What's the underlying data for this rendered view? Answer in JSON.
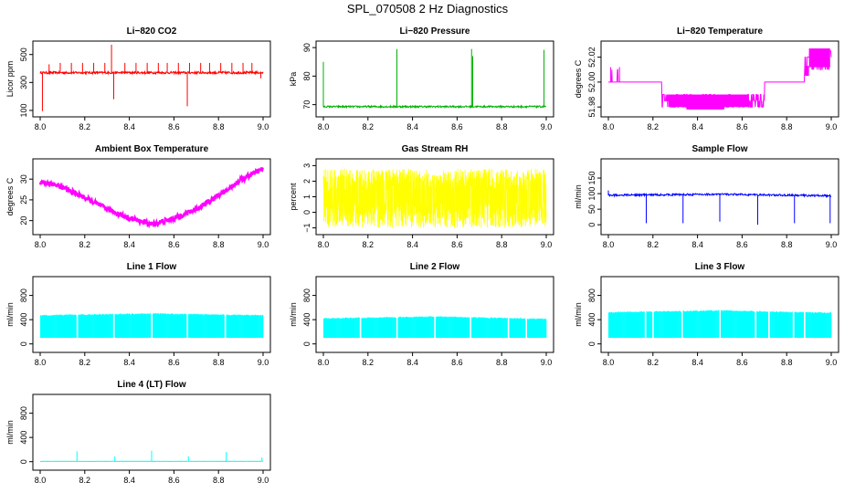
{
  "figure_title": "SPL_070508  2 Hz Diagnostics",
  "colors": {
    "red": "#ff0000",
    "green": "#00b000",
    "magenta": "#ff00ff",
    "yellow": "#ffff00",
    "blue": "#0000ff",
    "cyan": "#00ffff"
  },
  "chart_data": [
    {
      "type": "line",
      "title": "Li−820 CO2",
      "ylabel": "Licor ppm",
      "xlim": [
        8.0,
        9.0
      ],
      "ylim": [
        80,
        570
      ],
      "xticks": [
        "8.0",
        "8.2",
        "8.4",
        "8.6",
        "8.8",
        "9.0"
      ],
      "yticks": [
        "100",
        "300",
        "500"
      ],
      "ytick_values": [
        100,
        300,
        500
      ],
      "color": "red",
      "series": [
        {
          "baseline": 370,
          "noise": 8,
          "spikes": [
            {
              "x": 8.01,
              "y": 95
            },
            {
              "x": 8.04,
              "y": 430
            },
            {
              "x": 8.09,
              "y": 440
            },
            {
              "x": 8.14,
              "y": 440
            },
            {
              "x": 8.19,
              "y": 440
            },
            {
              "x": 8.24,
              "y": 440
            },
            {
              "x": 8.29,
              "y": 440
            },
            {
              "x": 8.32,
              "y": 570
            },
            {
              "x": 8.33,
              "y": 180
            },
            {
              "x": 8.38,
              "y": 440
            },
            {
              "x": 8.43,
              "y": 440
            },
            {
              "x": 8.48,
              "y": 440
            },
            {
              "x": 8.53,
              "y": 440
            },
            {
              "x": 8.57,
              "y": 440
            },
            {
              "x": 8.62,
              "y": 440
            },
            {
              "x": 8.66,
              "y": 130
            },
            {
              "x": 8.67,
              "y": 440
            },
            {
              "x": 8.72,
              "y": 440
            },
            {
              "x": 8.76,
              "y": 440
            },
            {
              "x": 8.81,
              "y": 440
            },
            {
              "x": 8.86,
              "y": 440
            },
            {
              "x": 8.91,
              "y": 440
            },
            {
              "x": 8.95,
              "y": 440
            },
            {
              "x": 8.99,
              "y": 330
            }
          ]
        }
      ]
    },
    {
      "type": "line",
      "title": "Li−820 Pressure",
      "ylabel": "kPa",
      "xlim": [
        8.0,
        9.0
      ],
      "ylim": [
        67,
        91
      ],
      "xticks": [
        "8.0",
        "8.2",
        "8.4",
        "8.6",
        "8.8",
        "9.0"
      ],
      "yticks": [
        "70",
        "80",
        "90"
      ],
      "ytick_values": [
        70,
        80,
        90
      ],
      "color": "green",
      "series": [
        {
          "baseline": 69.3,
          "noise": 0.3,
          "spikes": [
            {
              "x": 8.0,
              "y": 85
            },
            {
              "x": 8.33,
              "y": 89.5
            },
            {
              "x": 8.665,
              "y": 89.5
            },
            {
              "x": 8.67,
              "y": 87
            },
            {
              "x": 8.99,
              "y": 89.2
            }
          ]
        }
      ]
    },
    {
      "type": "line",
      "title": "Li−820 Temperature",
      "ylabel": "degrees C",
      "xlim": [
        8.0,
        9.0
      ],
      "ylim": [
        51.975,
        52.03
      ],
      "xticks": [
        "8.0",
        "8.2",
        "8.4",
        "8.6",
        "8.8",
        "9.0"
      ],
      "yticks": [
        "51.98",
        "52.00",
        "52.02"
      ],
      "ytick_values": [
        51.98,
        52.0,
        52.02
      ],
      "color": "magenta",
      "series": [
        {
          "baseline": 52.0,
          "noise": 0,
          "spikes": []
        }
      ]
    },
    {
      "type": "line",
      "title": "Ambient Box Temperature",
      "ylabel": "degrees C",
      "xlim": [
        8.0,
        9.0
      ],
      "ylim": [
        17.5,
        34
      ],
      "xticks": [
        "8.0",
        "8.2",
        "8.4",
        "8.6",
        "8.8",
        "9.0"
      ],
      "yticks": [
        "20",
        "25",
        "30"
      ],
      "ytick_values": [
        20,
        25,
        30
      ],
      "color": "magenta",
      "series": [
        {
          "curve": [
            [
              8.0,
              29.2
            ],
            [
              8.05,
              29.0
            ],
            [
              8.1,
              28.0
            ],
            [
              8.2,
              25.5
            ],
            [
              8.3,
              22.8
            ],
            [
              8.4,
              20.6
            ],
            [
              8.5,
              19.1
            ],
            [
              8.6,
              20.5
            ],
            [
              8.7,
              22.8
            ],
            [
              8.8,
              26.0
            ],
            [
              8.9,
              29.8
            ],
            [
              9.0,
              32.5
            ]
          ],
          "noise": 0.6
        }
      ]
    },
    {
      "type": "line",
      "title": "Gas Stream RH",
      "ylabel": "percent",
      "xlim": [
        8.0,
        9.0
      ],
      "ylim": [
        -1.2,
        3.2
      ],
      "xticks": [
        "8.0",
        "8.2",
        "8.4",
        "8.6",
        "8.8",
        "9.0"
      ],
      "yticks": [
        "−1",
        "0",
        "1",
        "2",
        "3"
      ],
      "ytick_values": [
        -1,
        0,
        1,
        2,
        3
      ],
      "color": "yellow",
      "series": [
        {
          "band": [
            -1.0,
            2.8
          ]
        }
      ]
    },
    {
      "type": "line",
      "title": "Sample Flow",
      "ylabel": "ml/min",
      "xlim": [
        8.0,
        9.0
      ],
      "ylim": [
        -20,
        200
      ],
      "xticks": [
        "8.0",
        "8.2",
        "8.4",
        "8.6",
        "8.8",
        "9.0"
      ],
      "yticks": [
        "0",
        "50",
        "100",
        "150"
      ],
      "ytick_values": [
        0,
        50,
        100,
        150
      ],
      "color": "blue",
      "series": [
        {
          "curve": [
            [
              8.0,
              95
            ],
            [
              8.5,
              98
            ],
            [
              9.0,
              93
            ]
          ],
          "noise": 3,
          "spikes": [
            {
              "x": 8.0,
              "y": 110
            },
            {
              "x": 8.17,
              "y": 5
            },
            {
              "x": 8.335,
              "y": 5
            },
            {
              "x": 8.5,
              "y": 10
            },
            {
              "x": 8.67,
              "y": 0
            },
            {
              "x": 8.835,
              "y": 5
            },
            {
              "x": 8.995,
              "y": 5
            }
          ]
        }
      ]
    },
    {
      "type": "area",
      "title": "Line 1 Flow",
      "ylabel": "ml/min",
      "xlim": [
        8.0,
        9.0
      ],
      "ylim": [
        -80,
        1050
      ],
      "xticks": [
        "8.0",
        "8.2",
        "8.4",
        "8.6",
        "8.8",
        "9.0"
      ],
      "yticks": [
        "0",
        "400",
        "800"
      ],
      "ytick_values": [
        0,
        400,
        800
      ],
      "color": "cyan",
      "series": [
        {
          "band_low": 100,
          "band_high": [
            [
              8.0,
              470
            ],
            [
              8.5,
              500
            ],
            [
              9.0,
              470
            ]
          ],
          "gaps": [
            8.165,
            8.33,
            8.5,
            8.66,
            8.83
          ]
        }
      ]
    },
    {
      "type": "area",
      "title": "Line 2 Flow",
      "ylabel": "ml/min",
      "xlim": [
        8.0,
        9.0
      ],
      "ylim": [
        -80,
        1050
      ],
      "xticks": [
        "8.0",
        "8.2",
        "8.4",
        "8.6",
        "8.8",
        "9.0"
      ],
      "yticks": [
        "0",
        "400",
        "800"
      ],
      "ytick_values": [
        0,
        400,
        800
      ],
      "color": "cyan",
      "series": [
        {
          "band_low": 100,
          "band_high": [
            [
              8.0,
              420
            ],
            [
              8.5,
              450
            ],
            [
              9.0,
              410
            ]
          ],
          "gaps": [
            8.165,
            8.33,
            8.5,
            8.66,
            8.83,
            8.91
          ]
        }
      ]
    },
    {
      "type": "area",
      "title": "Line 3 Flow",
      "ylabel": "ml/min",
      "xlim": [
        8.0,
        9.0
      ],
      "ylim": [
        -80,
        1050
      ],
      "xticks": [
        "8.0",
        "8.2",
        "8.4",
        "8.6",
        "8.8",
        "9.0"
      ],
      "yticks": [
        "0",
        "400",
        "800"
      ],
      "ytick_values": [
        0,
        400,
        800
      ],
      "color": "cyan",
      "series": [
        {
          "band_low": 100,
          "band_high": [
            [
              8.0,
              520
            ],
            [
              8.5,
              550
            ],
            [
              9.0,
              510
            ]
          ],
          "gaps": [
            8.165,
            8.2,
            8.33,
            8.5,
            8.66,
            8.72,
            8.83,
            8.88
          ]
        }
      ]
    },
    {
      "type": "line",
      "title": "Line 4 (LT) Flow",
      "ylabel": "ml/min",
      "xlim": [
        8.0,
        9.0
      ],
      "ylim": [
        -80,
        1050
      ],
      "xticks": [
        "8.0",
        "8.2",
        "8.4",
        "8.6",
        "8.8",
        "9.0"
      ],
      "yticks": [
        "0",
        "400",
        "800"
      ],
      "ytick_values": [
        0,
        400,
        800
      ],
      "color": "cyan",
      "series": [
        {
          "baseline": 5,
          "noise": 2,
          "spikes": [
            {
              "x": 8.165,
              "y": 170
            },
            {
              "x": 8.335,
              "y": 90
            },
            {
              "x": 8.5,
              "y": 180
            },
            {
              "x": 8.665,
              "y": 90
            },
            {
              "x": 8.835,
              "y": 160
            },
            {
              "x": 8.995,
              "y": 70
            }
          ]
        }
      ]
    }
  ]
}
